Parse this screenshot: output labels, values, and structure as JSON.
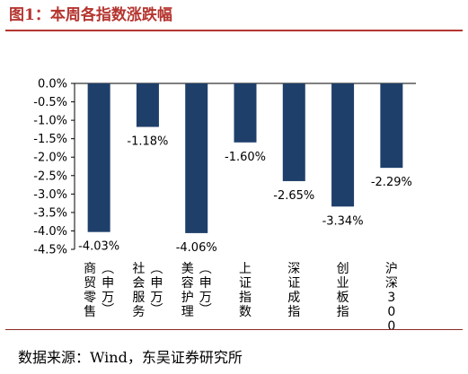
{
  "figure": {
    "label": "图1：",
    "title": "本周各指数涨跌幅",
    "source_label": "数据来源：",
    "source_value": "Wind，东吴证券研究所"
  },
  "chart_data": {
    "type": "bar",
    "categories": [
      "商贸零售（申万）",
      "社会服务（申万）",
      "美容护理（申万）",
      "上证指数",
      "深证成指",
      "创业板指",
      "沪深300"
    ],
    "category_lines": [
      [
        "商贸零售",
        "（申万）"
      ],
      [
        "社会服务",
        "（申万）"
      ],
      [
        "美容护理",
        "（申万）"
      ],
      [
        "上证指数"
      ],
      [
        "深证成指"
      ],
      [
        "创业板指"
      ],
      [
        "沪深300"
      ]
    ],
    "values": [
      -4.03,
      -1.18,
      -4.06,
      -1.6,
      -2.65,
      -3.34,
      -2.29
    ],
    "data_labels": [
      "-4.03%",
      "-1.18%",
      "-4.06%",
      "-1.60%",
      "-2.65%",
      "-3.34%",
      "-2.29%"
    ],
    "ylim": [
      -4.5,
      0
    ],
    "yticks": [
      0,
      -0.5,
      -1.0,
      -1.5,
      -2.0,
      -2.5,
      -3.0,
      -3.5,
      -4.0,
      -4.5
    ],
    "ytick_labels": [
      "0.0%",
      "-0.5%",
      "-1.0%",
      "-1.5%",
      "-2.0%",
      "-2.5%",
      "-3.0%",
      "-3.5%",
      "-4.0%",
      "-4.5%"
    ],
    "bar_color": "#1f3f6b",
    "grid": false,
    "legend": "none"
  }
}
